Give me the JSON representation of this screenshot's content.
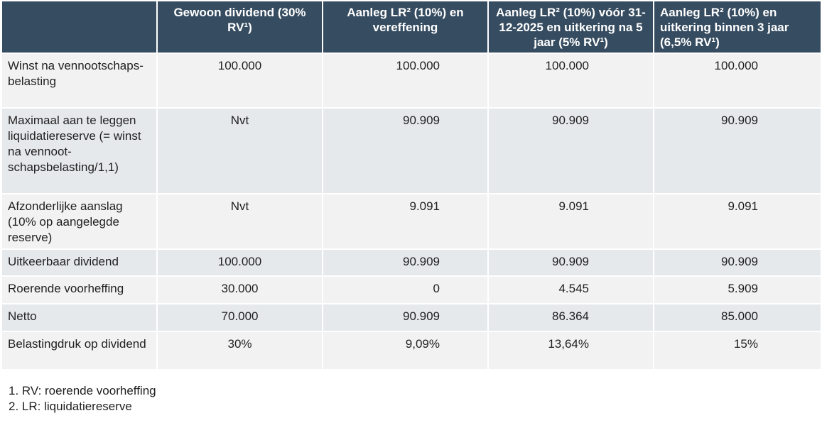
{
  "headers": [
    "",
    "Gewoon dividend (30% RV¹)",
    "Aanleg LR² (10%) en vereffening",
    "Aanleg LR² (10%) vóór 31-12-2025 en uitkering na 5 jaar (5% RV¹)",
    "Aanleg LR² (10%) en uitkering binnen 3 jaar (6,5% RV¹)"
  ],
  "rows": [
    {
      "label": "Winst na vennootschaps-belasting",
      "values": [
        "100.000",
        "100.000",
        "100.000",
        "100.000"
      ]
    },
    {
      "label": "Maximaal aan te leggen liquidatiereserve (= winst na vennoot-schapsbelasting/1,1)",
      "values": [
        "Nvt",
        "90.909",
        "90.909",
        "90.909"
      ]
    },
    {
      "label": "Afzonderlijke aanslag (10% op aangelegde reserve)",
      "values": [
        "Nvt",
        "9.091",
        "9.091",
        "9.091"
      ]
    },
    {
      "label": "Uitkeerbaar dividend",
      "values": [
        "100.000",
        "90.909",
        "90.909",
        "90.909"
      ]
    },
    {
      "label": "Roerende voorheffing",
      "values": [
        "30.000",
        "0",
        "4.545",
        "5.909"
      ]
    },
    {
      "label": "Netto",
      "values": [
        "70.000",
        "90.909",
        "86.364",
        "85.000"
      ]
    },
    {
      "label": "Belastingdruk op dividend",
      "values": [
        "30%",
        "9,09%",
        "13,64%",
        "15%"
      ]
    }
  ],
  "footnotes": [
    "1.  RV: roerende voorheffing",
    "2. LR: liquidatiereserve"
  ]
}
